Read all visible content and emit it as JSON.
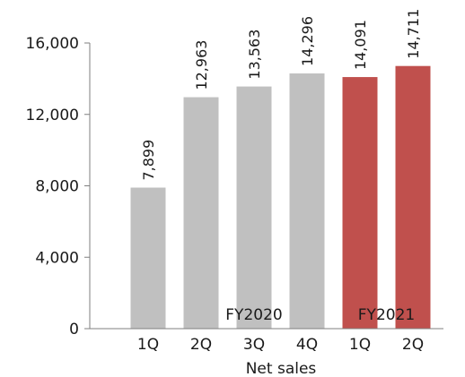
{
  "chart_data": {
    "type": "bar",
    "title": "",
    "xlabel": "Net sales",
    "ylabel": "",
    "ylim": [
      0,
      16000
    ],
    "yticks": [
      0,
      4000,
      8000,
      12000,
      16000
    ],
    "ytick_labels": [
      "0",
      "4,000",
      "8,000",
      "12,000",
      "16,000"
    ],
    "categories": [
      "1Q",
      "2Q",
      "3Q",
      "4Q",
      "1Q",
      "2Q"
    ],
    "values": [
      7899,
      12963,
      13563,
      14296,
      14091,
      14711
    ],
    "data_labels": [
      "7,899",
      "12,963",
      "13,563",
      "14,296",
      "14,091",
      "14,711"
    ],
    "groups": [
      {
        "label": "FY2020",
        "start": 0,
        "end": 3,
        "color": "#c0c0c0"
      },
      {
        "label": "FY2021",
        "start": 4,
        "end": 5,
        "color": "#c0504d"
      }
    ],
    "grid": false,
    "legend": "none"
  }
}
